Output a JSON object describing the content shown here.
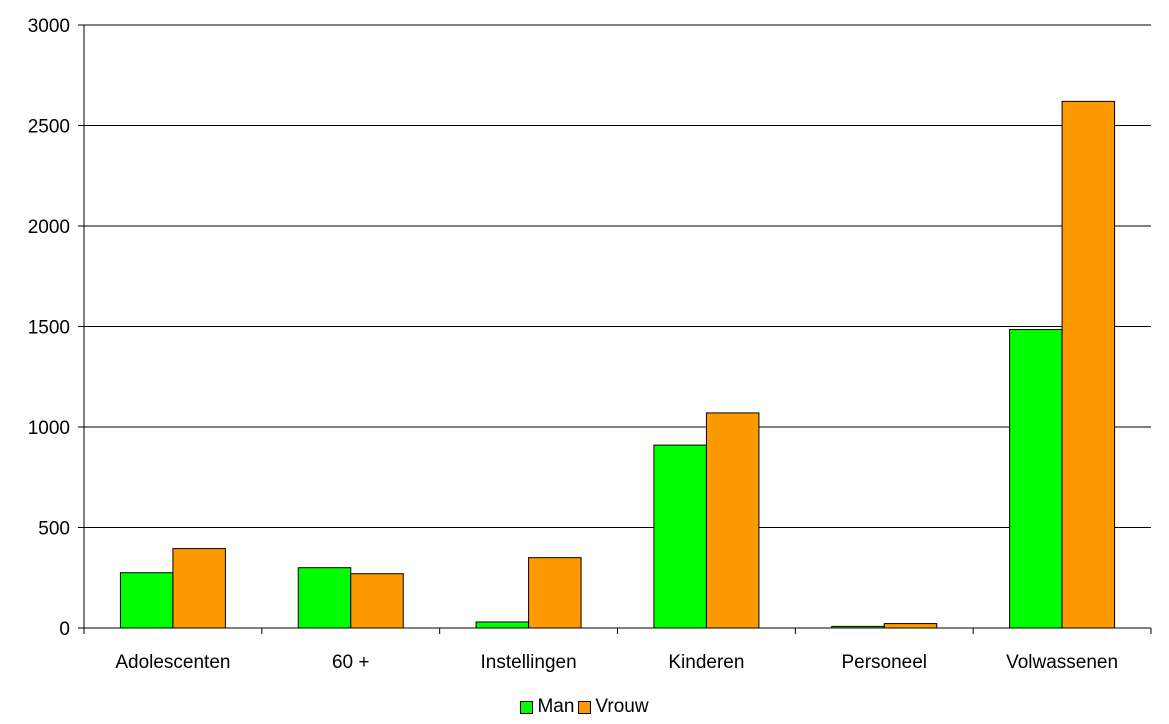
{
  "chart_data": {
    "type": "bar",
    "title": "",
    "xlabel": "",
    "ylabel": "",
    "categories": [
      "Adolescenten",
      "60 +",
      "Instellingen",
      "Kinderen",
      "Personeel",
      "Volwassenen"
    ],
    "series": [
      {
        "name": "Man",
        "color": "#00ff00",
        "values": [
          275,
          300,
          30,
          910,
          8,
          1485
        ]
      },
      {
        "name": "Vrouw",
        "color": "#ff9900",
        "values": [
          395,
          270,
          350,
          1070,
          22,
          2620
        ]
      }
    ],
    "yticks": [
      "0",
      "500",
      "1000",
      "1500",
      "2000",
      "2500",
      "3000"
    ],
    "ylim": [
      0,
      3000
    ],
    "grid": true,
    "legend_position": "bottom"
  }
}
